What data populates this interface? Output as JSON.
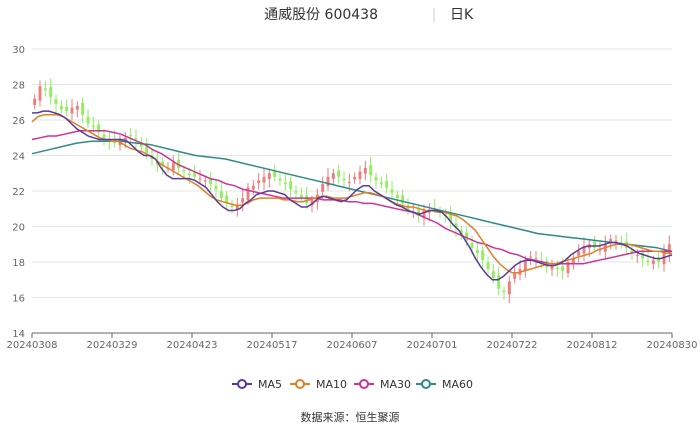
{
  "header": {
    "stock": "通威股份 600438",
    "period": "日K"
  },
  "footer": {
    "source": "数据来源：恒生聚源"
  },
  "chart_data": {
    "type": "candlestick",
    "yticks": [
      14,
      16,
      18,
      20,
      22,
      24,
      26,
      28,
      30
    ],
    "ylim": [
      14,
      30
    ],
    "xticks": [
      "20240308",
      "20240329",
      "20240423",
      "20240517",
      "20240607",
      "20240701",
      "20240722",
      "20240812",
      "20240830"
    ],
    "colors": {
      "up": "#ee7d7d",
      "down": "#8fef5c"
    },
    "series": [
      {
        "name": "MA5",
        "color": "#5b3a9e"
      },
      {
        "name": "MA10",
        "color": "#e07f26"
      },
      {
        "name": "MA30",
        "color": "#cc3399"
      },
      {
        "name": "MA60",
        "color": "#2e8b86"
      }
    ],
    "closes": [
      27.2,
      27.9,
      27.7,
      27.3,
      26.9,
      26.6,
      26.5,
      26.7,
      26.8,
      26.3,
      25.8,
      25.6,
      25.3,
      25.0,
      24.8,
      24.7,
      24.9,
      25.0,
      25.1,
      24.9,
      24.5,
      24.1,
      23.8,
      23.5,
      23.4,
      23.3,
      23.6,
      23.3,
      23.1,
      22.9,
      22.8,
      22.7,
      22.6,
      22.4,
      22.1,
      21.6,
      21.3,
      21.1,
      21.2,
      21.6,
      22.2,
      22.3,
      22.6,
      22.8,
      23.0,
      22.8,
      22.6,
      22.4,
      22.1,
      21.9,
      21.6,
      21.3,
      21.5,
      21.8,
      22.4,
      22.8,
      23.0,
      22.8,
      22.6,
      22.5,
      22.8,
      23.1,
      23.3,
      22.9,
      22.6,
      22.4,
      22.2,
      21.9,
      21.6,
      21.3,
      20.9,
      20.8,
      20.6,
      20.9,
      20.9,
      21.0,
      20.8,
      20.6,
      20.3,
      19.9,
      19.5,
      19.2,
      18.8,
      18.5,
      18.1,
      17.6,
      17.1,
      16.5,
      16.3,
      16.9,
      17.4,
      17.6,
      18.1,
      18.3,
      18.2,
      17.9,
      17.7,
      17.8,
      17.6,
      17.5,
      18.0,
      18.2,
      18.6,
      18.9,
      19.0,
      18.8,
      18.7,
      19.0,
      19.3,
      19.2,
      19.0,
      18.8,
      18.5,
      18.4,
      18.2,
      18.0,
      18.1,
      18.0,
      18.6,
      19.0
    ],
    "ma5": [
      26.4,
      26.4,
      26.5,
      26.5,
      26.4,
      26.3,
      26.1,
      25.8,
      25.5,
      25.3,
      25.1,
      25.0,
      24.9,
      24.9,
      24.9,
      24.9,
      24.9,
      24.8,
      24.5,
      24.2,
      24.0,
      24.0,
      23.8,
      23.3,
      22.9,
      22.7,
      22.7,
      22.7,
      22.7,
      22.6,
      22.4,
      22.2,
      21.8,
      21.4,
      21.1,
      20.9,
      20.9,
      21.0,
      21.3,
      21.5,
      21.8,
      21.9,
      22.0,
      22.0,
      21.9,
      21.8,
      21.5,
      21.3,
      21.1,
      21.1,
      21.3,
      21.6,
      21.7,
      21.6,
      21.5,
      21.4,
      21.5,
      21.8,
      22.1,
      22.3,
      22.3,
      22.0,
      21.8,
      21.6,
      21.4,
      21.2,
      21.1,
      20.9,
      20.8,
      20.7,
      20.8,
      20.9,
      20.9,
      20.8,
      20.5,
      20.1,
      19.8,
      19.3,
      18.8,
      18.2,
      17.7,
      17.3,
      17.0,
      17.0,
      17.2,
      17.5,
      17.8,
      18.0,
      18.1,
      18.1,
      18.0,
      17.9,
      17.8,
      17.8,
      17.9,
      18.1,
      18.4,
      18.6,
      18.8,
      18.9,
      18.9,
      18.9,
      19.0,
      19.1,
      19.1,
      19.0,
      18.9,
      18.7,
      18.5,
      18.4,
      18.3,
      18.2,
      18.2,
      18.3,
      18.4
    ],
    "ma10": [
      25.9,
      26.2,
      26.3,
      26.3,
      26.3,
      26.2,
      26.0,
      25.8,
      25.6,
      25.4,
      25.2,
      25.0,
      24.9,
      24.8,
      24.8,
      24.6,
      24.4,
      24.3,
      24.2,
      24.0,
      23.8,
      23.5,
      23.3,
      23.1,
      22.9,
      22.7,
      22.5,
      22.3,
      22.0,
      21.7,
      21.5,
      21.4,
      21.3,
      21.2,
      21.2,
      21.3,
      21.5,
      21.6,
      21.6,
      21.6,
      21.6,
      21.5,
      21.5,
      21.4,
      21.4,
      21.5,
      21.6,
      21.7,
      21.7,
      21.6,
      21.6,
      21.6,
      21.7,
      21.8,
      21.9,
      21.9,
      21.8,
      21.7,
      21.5,
      21.3,
      21.2,
      21.1,
      21.1,
      21.0,
      20.9,
      20.9,
      20.8,
      20.8,
      20.7,
      20.6,
      20.4,
      20.1,
      19.8,
      19.3,
      18.8,
      18.3,
      17.9,
      17.6,
      17.4,
      17.4,
      17.5,
      17.6,
      17.7,
      17.8,
      17.9,
      17.9,
      18.0,
      18.1,
      18.2,
      18.3,
      18.4,
      18.5,
      18.7,
      18.8,
      18.9,
      19.0,
      19.0,
      19.0,
      18.9,
      18.8,
      18.7,
      18.6,
      18.6,
      18.5,
      18.5
    ],
    "ma30": [
      24.9,
      25.0,
      25.1,
      25.1,
      25.2,
      25.3,
      25.4,
      25.4,
      25.4,
      25.4,
      25.3,
      25.2,
      25.0,
      24.8,
      24.6,
      24.3,
      24.1,
      23.8,
      23.5,
      23.3,
      23.1,
      22.9,
      22.7,
      22.6,
      22.4,
      22.3,
      22.1,
      22.0,
      21.9,
      21.8,
      21.7,
      21.6,
      21.6,
      21.6,
      21.6,
      21.6,
      21.5,
      21.5,
      21.5,
      21.4,
      21.4,
      21.3,
      21.3,
      21.2,
      21.1,
      21.0,
      20.9,
      20.8,
      20.6,
      20.4,
      20.2,
      19.9,
      19.7,
      19.5,
      19.3,
      19.1,
      19.0,
      18.8,
      18.7,
      18.5,
      18.4,
      18.2,
      18.1,
      18.0,
      17.9,
      17.9,
      17.9,
      17.9,
      17.9,
      18.0,
      18.1,
      18.2,
      18.3,
      18.4,
      18.5,
      18.6,
      18.6,
      18.6,
      18.6,
      18.6
    ],
    "ma60": [
      24.1,
      24.3,
      24.5,
      24.7,
      24.8,
      24.8,
      24.8,
      24.7,
      24.6,
      24.4,
      24.2,
      24.0,
      23.9,
      23.8,
      23.6,
      23.4,
      23.2,
      23.0,
      22.8,
      22.6,
      22.4,
      22.2,
      22.0,
      21.8,
      21.6,
      21.4,
      21.2,
      21.0,
      20.8,
      20.6,
      20.4,
      20.2,
      20.0,
      19.8,
      19.6,
      19.5,
      19.4,
      19.3,
      19.2,
      19.1,
      19.0,
      18.9,
      18.8,
      18.6
    ]
  }
}
